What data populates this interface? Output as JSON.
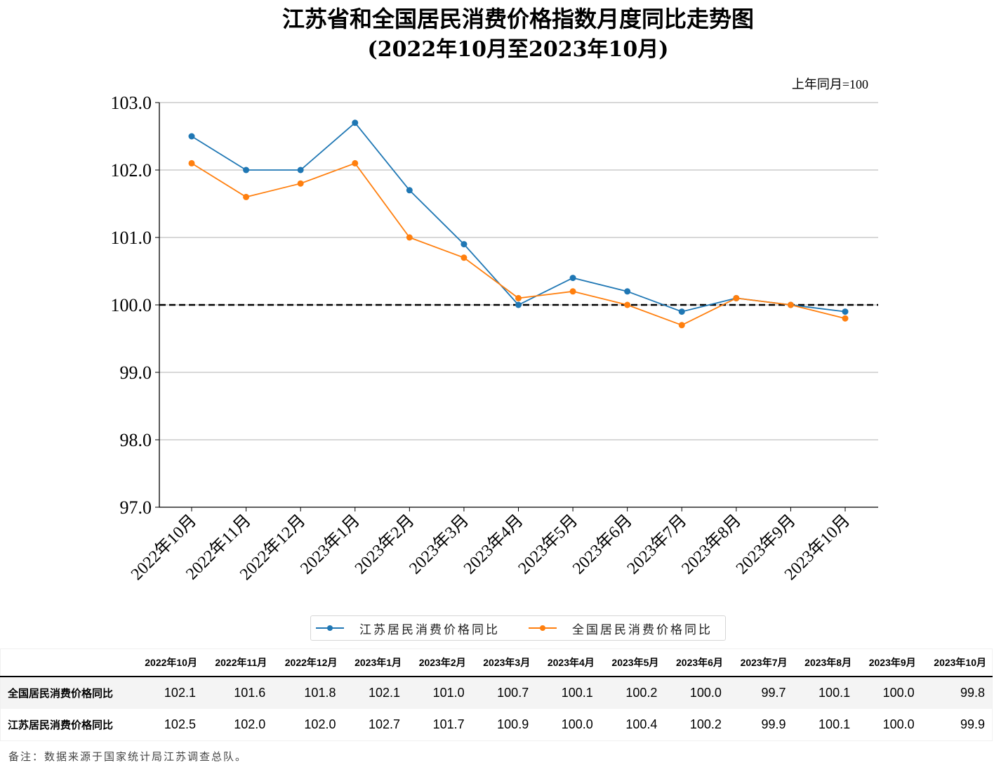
{
  "chart_data": {
    "type": "line",
    "title": "江苏省和全国居民消费价格指数月度同比走势图",
    "subtitle": "(2022年10月至2023年10月)",
    "unit_note": "上年同月=100",
    "xlabel": "",
    "ylabel": "",
    "ylim": [
      97.0,
      103.0
    ],
    "yticks": [
      "97.0",
      "98.0",
      "99.0",
      "100.0",
      "101.0",
      "102.0",
      "103.0"
    ],
    "grid": "horizontal",
    "reference_line": {
      "value": 100.0,
      "style": "dashed",
      "color": "#000000"
    },
    "categories": [
      "2022年10月",
      "2022年11月",
      "2022年12月",
      "2023年1月",
      "2023年2月",
      "2023年3月",
      "2023年4月",
      "2023年5月",
      "2023年6月",
      "2023年7月",
      "2023年8月",
      "2023年9月",
      "2023年10月"
    ],
    "series": [
      {
        "name": "江苏居民消费价格同比",
        "color": "#1f77b4",
        "values": [
          102.5,
          102.0,
          102.0,
          102.7,
          101.7,
          100.9,
          100.0,
          100.4,
          100.2,
          99.9,
          100.1,
          100.0,
          99.9
        ]
      },
      {
        "name": "全国居民消费价格同比",
        "color": "#ff7f0e",
        "values": [
          102.1,
          101.6,
          101.8,
          102.1,
          101.0,
          100.7,
          100.1,
          100.2,
          100.0,
          99.7,
          100.1,
          100.0,
          99.8
        ]
      }
    ],
    "legend": "bottom-center"
  },
  "table": {
    "columns": [
      "2022年10月",
      "2022年11月",
      "2022年12月",
      "2023年1月",
      "2023年2月",
      "2023年3月",
      "2023年4月",
      "2023年5月",
      "2023年6月",
      "2023年7月",
      "2023年8月",
      "2023年9月",
      "2023年10月"
    ],
    "rows": [
      {
        "label": "全国居民消费价格同比",
        "values": [
          "102.1",
          "101.6",
          "101.8",
          "102.1",
          "101.0",
          "100.7",
          "100.1",
          "100.2",
          "100.0",
          "99.7",
          "100.1",
          "100.0",
          "99.8"
        ]
      },
      {
        "label": "江苏居民消费价格同比",
        "values": [
          "102.5",
          "102.0",
          "102.0",
          "102.7",
          "101.7",
          "100.9",
          "100.0",
          "100.4",
          "100.2",
          "99.9",
          "100.1",
          "100.0",
          "99.9"
        ]
      }
    ]
  },
  "note": "备注：数据来源于国家统计局江苏调查总队。"
}
